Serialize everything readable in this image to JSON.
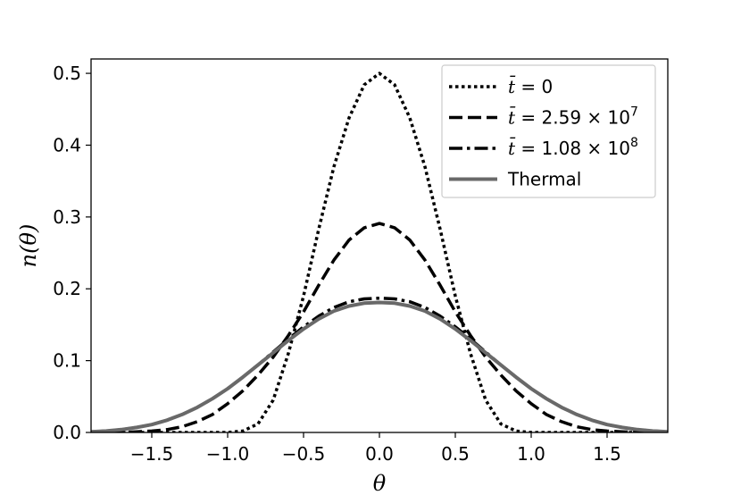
{
  "chart_data": {
    "type": "line",
    "title": "",
    "xlabel": "θ",
    "ylabel": "n(θ)",
    "xlim": [
      -1.9,
      1.9
    ],
    "ylim": [
      0.0,
      0.52
    ],
    "grid": false,
    "legend_position": "top-right",
    "x_ticks": [
      -1.5,
      -1.0,
      -0.5,
      0.0,
      0.5,
      1.0,
      1.5
    ],
    "x_tick_labels": [
      "−1.5",
      "−1.0",
      "−0.5",
      "0.0",
      "0.5",
      "1.0",
      "1.5"
    ],
    "y_ticks": [
      0.0,
      0.1,
      0.2,
      0.3,
      0.4,
      0.5
    ],
    "y_tick_labels": [
      "0.0",
      "0.1",
      "0.2",
      "0.3",
      "0.4",
      "0.5"
    ],
    "x": [
      -1.9,
      -1.8,
      -1.7,
      -1.6,
      -1.5,
      -1.4,
      -1.3,
      -1.2,
      -1.1,
      -1.0,
      -0.9,
      -0.8,
      -0.7,
      -0.6,
      -0.5,
      -0.4,
      -0.3,
      -0.2,
      -0.1,
      0.0,
      0.1,
      0.2,
      0.3,
      0.4,
      0.5,
      0.6,
      0.7,
      0.8,
      0.9,
      1.0,
      1.1,
      1.2,
      1.3,
      1.4,
      1.5,
      1.6,
      1.7,
      1.8,
      1.9
    ],
    "series": [
      {
        "name": "t̄ = 0",
        "legend_label": {
          "var": "t̄",
          "rest": " = 0",
          "exp": ""
        },
        "style": "dotted",
        "color": "#000000",
        "values": [
          0.0,
          0.0,
          0.0,
          0.0,
          0.0,
          0.0,
          0.0,
          0.0,
          0.0,
          0.0,
          0.002,
          0.012,
          0.045,
          0.11,
          0.19,
          0.283,
          0.37,
          0.438,
          0.484,
          0.5,
          0.484,
          0.438,
          0.37,
          0.283,
          0.19,
          0.11,
          0.045,
          0.012,
          0.002,
          0.0,
          0.0,
          0.0,
          0.0,
          0.0,
          0.0,
          0.0,
          0.0,
          0.0,
          0.0
        ]
      },
      {
        "name": "t̄ = 2.59 × 10^7",
        "legend_label": {
          "var": "t̄",
          "rest": " = 2.59 × 10",
          "exp": "7"
        },
        "style": "dashed",
        "color": "#000000",
        "values": [
          0.0,
          0.0,
          0.0,
          0.001,
          0.002,
          0.004,
          0.008,
          0.015,
          0.025,
          0.04,
          0.058,
          0.08,
          0.105,
          0.135,
          0.168,
          0.205,
          0.24,
          0.268,
          0.285,
          0.291,
          0.285,
          0.268,
          0.24,
          0.205,
          0.168,
          0.135,
          0.105,
          0.08,
          0.058,
          0.04,
          0.025,
          0.015,
          0.008,
          0.004,
          0.002,
          0.001,
          0.0,
          0.0,
          0.0
        ]
      },
      {
        "name": "t̄ = 1.08 × 10^8",
        "legend_label": {
          "var": "t̄",
          "rest": " = 1.08 × 10",
          "exp": "8"
        },
        "style": "dashdot",
        "color": "#000000",
        "values": [
          0.001,
          0.002,
          0.004,
          0.007,
          0.011,
          0.017,
          0.025,
          0.035,
          0.047,
          0.061,
          0.077,
          0.094,
          0.112,
          0.13,
          0.147,
          0.162,
          0.174,
          0.182,
          0.186,
          0.187,
          0.186,
          0.182,
          0.174,
          0.162,
          0.147,
          0.13,
          0.112,
          0.094,
          0.077,
          0.061,
          0.047,
          0.035,
          0.025,
          0.017,
          0.011,
          0.007,
          0.004,
          0.002,
          0.001
        ]
      },
      {
        "name": "Thermal",
        "legend_label": {
          "var": "",
          "rest": "Thermal",
          "exp": ""
        },
        "style": "solid",
        "color": "#696969",
        "values": [
          0.001,
          0.002,
          0.004,
          0.007,
          0.011,
          0.017,
          0.025,
          0.035,
          0.047,
          0.061,
          0.077,
          0.094,
          0.111,
          0.128,
          0.144,
          0.158,
          0.169,
          0.176,
          0.18,
          0.181,
          0.18,
          0.176,
          0.169,
          0.158,
          0.144,
          0.128,
          0.111,
          0.094,
          0.077,
          0.061,
          0.047,
          0.035,
          0.025,
          0.017,
          0.011,
          0.007,
          0.004,
          0.002,
          0.001
        ]
      }
    ]
  }
}
